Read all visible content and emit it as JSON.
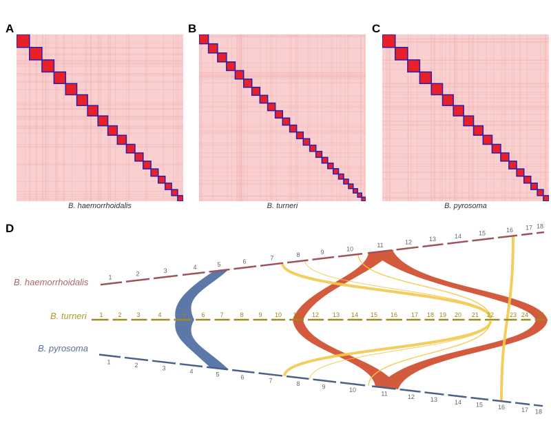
{
  "panels": {
    "A": {
      "label": "A",
      "species": "B. haemorrhoidalis",
      "chromosomes": 18
    },
    "B": {
      "label": "B",
      "species": "B. turneri",
      "chromosomes": 25
    },
    "C": {
      "label": "C",
      "species": "B. pyrosoma",
      "chromosomes": 18
    }
  },
  "synteny": {
    "label": "D",
    "rows": [
      {
        "species": "B. haemorrhoidalis",
        "color": "#a0525a",
        "chromosomes": [
          "1",
          "2",
          "3",
          "4",
          "5",
          "6",
          "7",
          "8",
          "9",
          "10",
          "11",
          "12",
          "13",
          "14",
          "15",
          "16",
          "17",
          "18"
        ]
      },
      {
        "species": "B. turneri",
        "color": "#a08a1e",
        "chromosomes": [
          "1",
          "2",
          "3",
          "4",
          "5",
          "6",
          "7",
          "8",
          "9",
          "10",
          "11",
          "12",
          "13",
          "14",
          "15",
          "16",
          "17",
          "18",
          "19",
          "20",
          "21",
          "22",
          "23",
          "24",
          "25"
        ]
      },
      {
        "species": "B. pyrosoma",
        "color": "#4a5f8a",
        "chromosomes": [
          "1",
          "2",
          "3",
          "4",
          "5",
          "6",
          "7",
          "8",
          "9",
          "10",
          "11",
          "12",
          "13",
          "14",
          "15",
          "16",
          "17",
          "18"
        ]
      }
    ],
    "ribbon_colors": {
      "blue": "#5b78a8",
      "red": "#d35a3c",
      "yellow": "#f3c94a"
    }
  },
  "colors": {
    "heatmap_bg": "#f9cfcf",
    "heatmap_block": "#e8202a",
    "block_border": "#2a1fa8"
  }
}
